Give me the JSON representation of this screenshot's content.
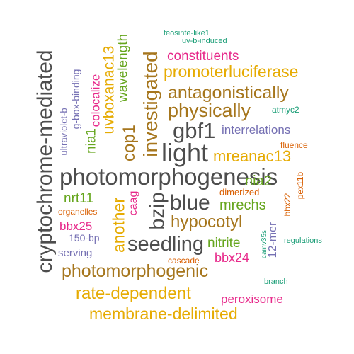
{
  "palette": {
    "dark_gray": "#4d4d4d",
    "brown": "#a6761d",
    "gold": "#e6ab02",
    "green": "#66a61e",
    "magenta": "#e7298a",
    "purple": "#7570b3",
    "orange": "#d95f02",
    "teal": "#1b9e77"
  },
  "words": [
    {
      "text": "photomorphogenesis",
      "color": "#4d4d4d"
    },
    {
      "text": "cryptochrome-mediated",
      "color": "#4d4d4d"
    },
    {
      "text": "photomorphogenic",
      "color": "#a6761d"
    },
    {
      "text": "light",
      "color": "#4d4d4d"
    },
    {
      "text": "gbf1",
      "color": "#4d4d4d"
    },
    {
      "text": "blue",
      "color": "#4d4d4d"
    },
    {
      "text": "seedling",
      "color": "#4d4d4d"
    },
    {
      "text": "bzip",
      "color": "#4d4d4d"
    },
    {
      "text": "investigated",
      "color": "#a6761d"
    },
    {
      "text": "physically",
      "color": "#a6761d"
    },
    {
      "text": "antagonistically",
      "color": "#a6761d"
    },
    {
      "text": "hypocotyl",
      "color": "#a6761d"
    },
    {
      "text": "rate-dependent",
      "color": "#e6ab02"
    },
    {
      "text": "membrane-delimited",
      "color": "#e6ab02"
    },
    {
      "text": "promoterluciferase",
      "color": "#e6ab02"
    },
    {
      "text": "mreanac13",
      "color": "#e6ab02"
    },
    {
      "text": "cop1",
      "color": "#a6761d"
    },
    {
      "text": "another",
      "color": "#e6ab02"
    },
    {
      "text": "uvboxanac13",
      "color": "#e6ab02"
    },
    {
      "text": "wavelength",
      "color": "#66a61e"
    },
    {
      "text": "constituents",
      "color": "#e7298a"
    },
    {
      "text": "mrechs",
      "color": "#66a61e"
    },
    {
      "text": "nitrite",
      "color": "#66a61e"
    },
    {
      "text": "nia2",
      "color": "#66a61e"
    },
    {
      "text": "nrt11",
      "color": "#66a61e"
    },
    {
      "text": "nia1",
      "color": "#66a61e"
    },
    {
      "text": "colocalize",
      "color": "#e7298a"
    },
    {
      "text": "bbx24",
      "color": "#e7298a"
    },
    {
      "text": "bbx25",
      "color": "#e7298a"
    },
    {
      "text": "peroxisome",
      "color": "#e7298a"
    },
    {
      "text": "interrelations",
      "color": "#7570b3"
    },
    {
      "text": "caag",
      "color": "#e7298a"
    },
    {
      "text": "g-box-binding",
      "color": "#7570b3"
    },
    {
      "text": "ultraviolet-b",
      "color": "#7570b3"
    },
    {
      "text": "12-mer",
      "color": "#7570b3"
    },
    {
      "text": "150-bp",
      "color": "#7570b3"
    },
    {
      "text": "serving",
      "color": "#7570b3"
    },
    {
      "text": "dimerized",
      "color": "#d95f02"
    },
    {
      "text": "organelles",
      "color": "#d95f02"
    },
    {
      "text": "cascade",
      "color": "#d95f02"
    },
    {
      "text": "fluence",
      "color": "#d95f02"
    },
    {
      "text": "bbx22",
      "color": "#d95f02"
    },
    {
      "text": "pex11b",
      "color": "#d95f02"
    },
    {
      "text": "atmyc2",
      "color": "#1b9e77"
    },
    {
      "text": "camv35s",
      "color": "#1b9e77"
    },
    {
      "text": "regulations",
      "color": "#1b9e77"
    },
    {
      "text": "branch",
      "color": "#1b9e77"
    },
    {
      "text": "teosinte-like1",
      "color": "#1b9e77"
    },
    {
      "text": "uv-b-induced",
      "color": "#1b9e77"
    }
  ]
}
